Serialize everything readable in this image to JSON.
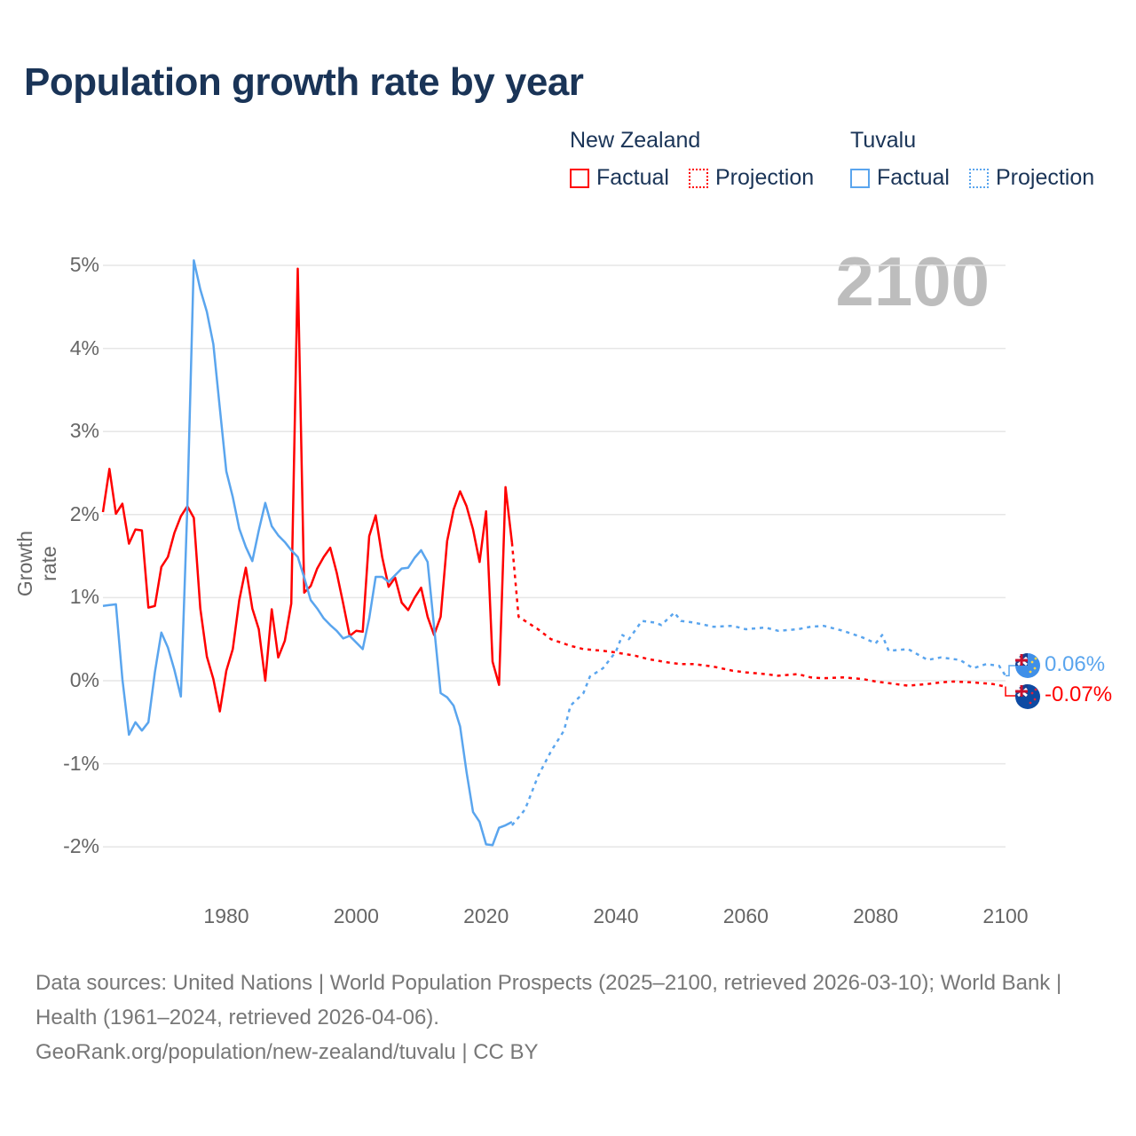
{
  "title": "Population growth rate by year",
  "legend": {
    "groups": [
      {
        "name": "New Zealand",
        "factual": "Factual",
        "projection": "Projection",
        "color": "#ff0000"
      },
      {
        "name": "Tuvalu",
        "factual": "Factual",
        "projection": "Projection",
        "color": "#5aa5ee"
      }
    ]
  },
  "year_display": "2100",
  "end_labels": {
    "tuvalu": "0.06%",
    "new_zealand": "-0.07%"
  },
  "source": {
    "line1": "Data sources: United Nations | World Population Prospects (2025–2100, retrieved 2026-03-10); World Bank | Health (1961–2024, retrieved 2026-04-06).",
    "line2": "GeoRank.org/population/new-zealand/tuvalu | CC BY"
  },
  "chart_data": {
    "type": "line",
    "title": "Population growth rate by year",
    "xlabel": "",
    "ylabel": "Growth rate",
    "xlim": [
      1961,
      2100
    ],
    "ylim": [
      -2.5,
      5.2
    ],
    "x_ticks": [
      "1980",
      "2000",
      "2020",
      "2040",
      "2060",
      "2080",
      "2100"
    ],
    "x_tick_values": [
      1980,
      2000,
      2020,
      2040,
      2060,
      2080,
      2100
    ],
    "y_ticks": [
      "5%",
      "4%",
      "3%",
      "2%",
      "1%",
      "0%",
      "-1%",
      "-2%"
    ],
    "y_tick_values": [
      5,
      4,
      3,
      2,
      1,
      0,
      -1,
      -2
    ],
    "grid": true,
    "legend_position": "top-right",
    "series": [
      {
        "name": "New Zealand Factual",
        "color": "#ff0000",
        "style": "solid",
        "x": [
          1961,
          1962,
          1963,
          1964,
          1965,
          1966,
          1967,
          1968,
          1969,
          1970,
          1971,
          1972,
          1973,
          1974,
          1975,
          1976,
          1977,
          1978,
          1979,
          1980,
          1981,
          1982,
          1983,
          1984,
          1985,
          1986,
          1987,
          1988,
          1989,
          1990,
          1991,
          1992,
          1993,
          1994,
          1995,
          1996,
          1997,
          1998,
          1999,
          2000,
          2001,
          2002,
          2003,
          2004,
          2005,
          2006,
          2007,
          2008,
          2009,
          2010,
          2011,
          2012,
          2013,
          2014,
          2015,
          2016,
          2017,
          2018,
          2019,
          2020,
          2021,
          2022,
          2023,
          2024
        ],
        "y": [
          2.03,
          2.55,
          2.01,
          2.13,
          1.65,
          1.82,
          1.81,
          0.88,
          0.9,
          1.37,
          1.49,
          1.78,
          1.98,
          2.1,
          1.96,
          0.87,
          0.29,
          0.02,
          -0.37,
          0.12,
          0.38,
          0.97,
          1.36,
          0.87,
          0.62,
          0.0,
          0.86,
          0.28,
          0.48,
          0.93,
          4.96,
          1.06,
          1.14,
          1.35,
          1.49,
          1.6,
          1.3,
          0.93,
          0.54,
          0.6,
          0.59,
          1.74,
          1.99,
          1.49,
          1.13,
          1.24,
          0.94,
          0.85,
          1.0,
          1.12,
          0.77,
          0.55,
          0.77,
          1.68,
          2.06,
          2.28,
          2.1,
          1.82,
          1.43,
          2.04,
          0.23,
          -0.05,
          2.33,
          1.66
        ]
      },
      {
        "name": "New Zealand Projection",
        "color": "#ff0000",
        "style": "dotted",
        "x": [
          2024,
          2025,
          2028,
          2030,
          2033,
          2035,
          2038,
          2040,
          2043,
          2045,
          2048,
          2050,
          2052,
          2055,
          2058,
          2060,
          2063,
          2065,
          2068,
          2070,
          2072,
          2075,
          2078,
          2080,
          2083,
          2085,
          2088,
          2090,
          2092,
          2095,
          2098,
          2100
        ],
        "y": [
          1.66,
          0.77,
          0.62,
          0.5,
          0.42,
          0.38,
          0.36,
          0.34,
          0.3,
          0.26,
          0.22,
          0.2,
          0.2,
          0.17,
          0.12,
          0.1,
          0.08,
          0.06,
          0.08,
          0.04,
          0.03,
          0.04,
          0.02,
          -0.01,
          -0.04,
          -0.06,
          -0.04,
          -0.02,
          -0.01,
          -0.02,
          -0.04,
          -0.07
        ]
      },
      {
        "name": "Tuvalu Factual",
        "color": "#5aa5ee",
        "style": "solid",
        "x": [
          1961,
          1962,
          1963,
          1964,
          1965,
          1966,
          1967,
          1968,
          1969,
          1970,
          1971,
          1972,
          1973,
          1974,
          1975,
          1976,
          1977,
          1978,
          1979,
          1980,
          1981,
          1982,
          1983,
          1984,
          1985,
          1986,
          1987,
          1988,
          1989,
          1990,
          1991,
          1992,
          1993,
          1994,
          1995,
          1996,
          1997,
          1998,
          1999,
          2000,
          2001,
          2002,
          2003,
          2004,
          2005,
          2006,
          2007,
          2008,
          2009,
          2010,
          2011,
          2012,
          2013,
          2014,
          2015,
          2016,
          2017,
          2018,
          2019,
          2020,
          2021,
          2022,
          2023,
          2024
        ],
        "y": [
          0.9,
          0.91,
          0.92,
          0.02,
          -0.65,
          -0.5,
          -0.6,
          -0.5,
          0.1,
          0.58,
          0.4,
          0.13,
          -0.19,
          2.1,
          5.06,
          4.71,
          4.44,
          4.05,
          3.28,
          2.52,
          2.21,
          1.83,
          1.61,
          1.44,
          1.81,
          2.14,
          1.86,
          1.75,
          1.67,
          1.57,
          1.49,
          1.24,
          0.97,
          0.87,
          0.75,
          0.67,
          0.6,
          0.51,
          0.54,
          0.46,
          0.38,
          0.75,
          1.25,
          1.25,
          1.19,
          1.27,
          1.35,
          1.36,
          1.48,
          1.57,
          1.43,
          0.65,
          -0.15,
          -0.2,
          -0.3,
          -0.55,
          -1.1,
          -1.58,
          -1.7,
          -1.97,
          -1.98,
          -1.77,
          -1.74,
          -1.7
        ]
      },
      {
        "name": "Tuvalu Projection",
        "color": "#5aa5ee",
        "style": "dotted",
        "x": [
          2024,
          2026,
          2028,
          2030,
          2032,
          2033,
          2035,
          2036,
          2038,
          2040,
          2041,
          2042,
          2044,
          2046,
          2047,
          2049,
          2050,
          2052,
          2055,
          2058,
          2060,
          2063,
          2065,
          2068,
          2070,
          2072,
          2075,
          2078,
          2080,
          2081,
          2082,
          2085,
          2088,
          2090,
          2093,
          2095,
          2097,
          2099,
          2100
        ],
        "y": [
          -1.74,
          -1.55,
          -1.15,
          -0.85,
          -0.6,
          -0.3,
          -0.15,
          0.05,
          0.15,
          0.35,
          0.55,
          0.5,
          0.72,
          0.7,
          0.67,
          0.82,
          0.72,
          0.7,
          0.65,
          0.66,
          0.62,
          0.64,
          0.6,
          0.62,
          0.65,
          0.66,
          0.6,
          0.52,
          0.45,
          0.55,
          0.36,
          0.38,
          0.25,
          0.28,
          0.25,
          0.15,
          0.2,
          0.18,
          0.06
        ]
      }
    ]
  }
}
